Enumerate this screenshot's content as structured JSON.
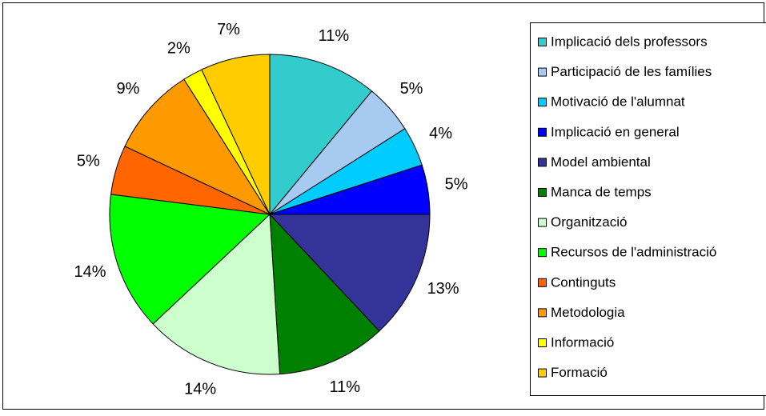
{
  "chart_data": {
    "type": "pie",
    "categories": [
      "Implicació dels professors",
      "Participació de les famílies",
      "Motivació de l'alumnat",
      "Implicació en general",
      "Model ambiental",
      "Manca de temps",
      "Organització",
      "Recursos de l'administració",
      "Continguts",
      "Metodologia",
      "Informació",
      "Formació"
    ],
    "values": [
      11,
      5,
      4,
      5,
      13,
      11,
      14,
      14,
      5,
      9,
      2,
      7
    ],
    "value_labels": [
      "11%",
      "5%",
      "4%",
      "5%",
      "13%",
      "11%",
      "14%",
      "14%",
      "5%",
      "9%",
      "2%",
      "7%"
    ],
    "colors": [
      "#33CCCC",
      "#A6CAF0",
      "#00CCFF",
      "#0000FF",
      "#333399",
      "#008000",
      "#CCFFCC",
      "#00FF00",
      "#FF6600",
      "#FF9900",
      "#FFFF00",
      "#FFCC00"
    ],
    "legend": "right"
  }
}
